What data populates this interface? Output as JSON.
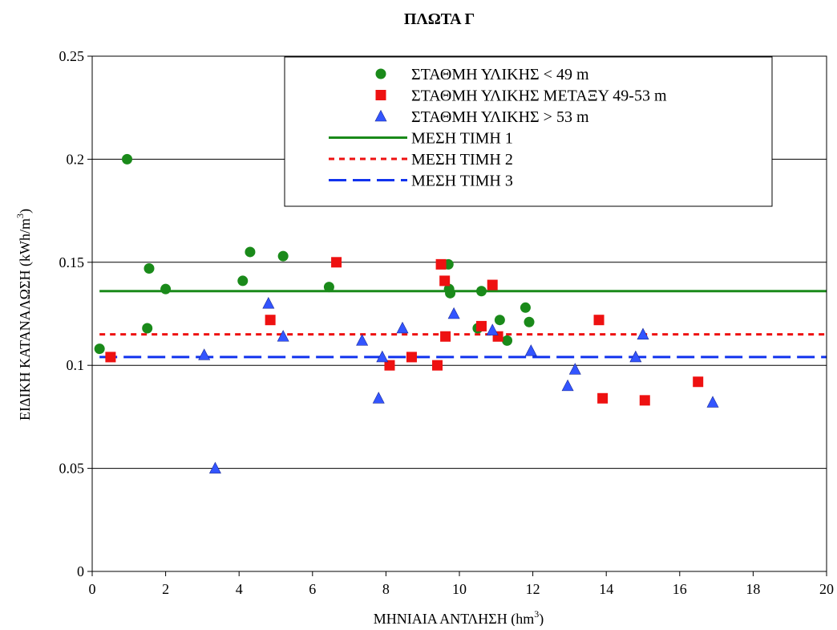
{
  "chart_data": {
    "type": "scatter",
    "title": "ΠΛΩΤΑ Γ",
    "xlabel": "ΜΗΝΙΑΙΑ ΑΝΤΛΗΣΗ (hm",
    "xlabel_sup": "3",
    "xlabel_suffix": ")",
    "ylabel": "ΕΙΔΙΚΗ ΚΑΤΑΝΑΛΩΣΗ (kWh/m",
    "ylabel_sup": "3",
    "ylabel_suffix": ")",
    "xlim": [
      0,
      20
    ],
    "ylim": [
      0,
      0.25
    ],
    "x_ticks": [
      "0",
      "2",
      "4",
      "6",
      "8",
      "10",
      "12",
      "14",
      "16",
      "18",
      "20"
    ],
    "y_ticks": [
      "0",
      "0.05",
      "0.1",
      "0.15",
      "0.2",
      "0.25"
    ],
    "grid": "horizontal",
    "legend_position": "top-right",
    "series": [
      {
        "name": "ΣΤΑΘΜΗ ΥΛΙΚΗΣ < 49 m",
        "marker": "circle",
        "color": "#1a8a1a",
        "points": [
          [
            0.2,
            0.108
          ],
          [
            0.95,
            0.2
          ],
          [
            1.5,
            0.118
          ],
          [
            1.55,
            0.147
          ],
          [
            2.0,
            0.137
          ],
          [
            4.1,
            0.141
          ],
          [
            4.3,
            0.155
          ],
          [
            5.2,
            0.153
          ],
          [
            6.45,
            0.138
          ],
          [
            9.7,
            0.149
          ],
          [
            9.72,
            0.137
          ],
          [
            9.75,
            0.135
          ],
          [
            10.5,
            0.118
          ],
          [
            10.6,
            0.136
          ],
          [
            11.1,
            0.122
          ],
          [
            11.3,
            0.112
          ],
          [
            11.8,
            0.128
          ],
          [
            11.9,
            0.121
          ]
        ]
      },
      {
        "name": "ΣΤΑΘΜΗ ΥΛΙΚΗΣ ΜΕΤΑΞΥ 49-53 m",
        "marker": "square",
        "color": "#ee1111",
        "points": [
          [
            0.5,
            0.104
          ],
          [
            4.85,
            0.122
          ],
          [
            6.65,
            0.15
          ],
          [
            8.1,
            0.1
          ],
          [
            8.7,
            0.104
          ],
          [
            9.4,
            0.1
          ],
          [
            9.5,
            0.149
          ],
          [
            9.6,
            0.141
          ],
          [
            9.62,
            0.114
          ],
          [
            10.6,
            0.119
          ],
          [
            10.9,
            0.139
          ],
          [
            11.05,
            0.114
          ],
          [
            13.8,
            0.122
          ],
          [
            13.9,
            0.084
          ],
          [
            15.05,
            0.083
          ],
          [
            16.5,
            0.092
          ]
        ]
      },
      {
        "name": "ΣΤΑΘΜΗ ΥΛΙΚΗΣ > 53 m",
        "marker": "triangle",
        "color": "#3355ff",
        "points": [
          [
            3.05,
            0.105
          ],
          [
            3.35,
            0.05
          ],
          [
            4.8,
            0.13
          ],
          [
            5.2,
            0.114
          ],
          [
            7.35,
            0.112
          ],
          [
            7.8,
            0.084
          ],
          [
            7.9,
            0.104
          ],
          [
            8.45,
            0.118
          ],
          [
            9.85,
            0.125
          ],
          [
            10.9,
            0.117
          ],
          [
            11.95,
            0.107
          ],
          [
            12.95,
            0.09
          ],
          [
            13.15,
            0.098
          ],
          [
            14.8,
            0.104
          ],
          [
            15.0,
            0.115
          ],
          [
            16.9,
            0.082
          ]
        ]
      }
    ],
    "mean_lines": [
      {
        "name": "ΜΕΣΗ ΤΙΜΗ 1",
        "value": 0.136,
        "x_range": [
          0.2,
          20
        ],
        "style": "solid",
        "color": "#1a8a1a"
      },
      {
        "name": "ΜΕΣΗ ΤΙΜΗ 2",
        "value": 0.115,
        "x_range": [
          0.2,
          20
        ],
        "style": "dotted",
        "color": "#ee1111"
      },
      {
        "name": "ΜΕΣΗ ΤΙΜΗ 3",
        "value": 0.104,
        "x_range": [
          0.2,
          20
        ],
        "style": "dashed",
        "color": "#1133ee"
      }
    ]
  }
}
